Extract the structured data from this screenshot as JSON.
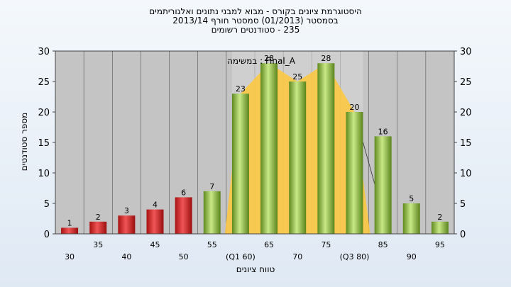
{
  "chart_data": {
    "type": "bar",
    "title_lines": [
      "היסטוגרמת ציונים בקורס - מבוא למבני נתונים ואלגוריתמים",
      "בסמסטר  (01/2013)  סמסטר חורף 2013/14",
      "235 - סטודנטים רשומים"
    ],
    "annotation": "במשימה : Final_A",
    "xlabel": "טווח ציונים",
    "ylabel": "מספר סטודנטים",
    "ylim": [
      0,
      30
    ],
    "y_ticks": [
      "0",
      "5",
      "10",
      "15",
      "20",
      "25",
      "30"
    ],
    "categories": [
      "30",
      "35",
      "40",
      "45",
      "50",
      "55",
      "(Q1 60)",
      "65",
      "70",
      "75",
      "(Q3 80)",
      "85",
      "90",
      "95"
    ],
    "values": [
      1,
      2,
      3,
      4,
      6,
      7,
      23,
      28,
      25,
      28,
      20,
      16,
      5,
      2
    ],
    "data_labels": [
      "1",
      "2",
      "3",
      "4",
      "6",
      "7",
      "23",
      "28",
      "25",
      "28",
      "20",
      "16",
      "5",
      "2"
    ],
    "bar_colors": [
      "red",
      "red",
      "red",
      "red",
      "red",
      "green",
      "green",
      "green",
      "green",
      "green",
      "green",
      "green",
      "green",
      "green"
    ],
    "interquartile_band": [
      "(Q1 60)",
      "(Q3 80)"
    ],
    "colors": {
      "plot_bg": "#c4c4c4",
      "red_bar": "#dd2a2a",
      "green_bar": "#8fbf3c",
      "band": "#ffc83a",
      "gridline": "#555555"
    },
    "legend": "none",
    "grid": true
  }
}
